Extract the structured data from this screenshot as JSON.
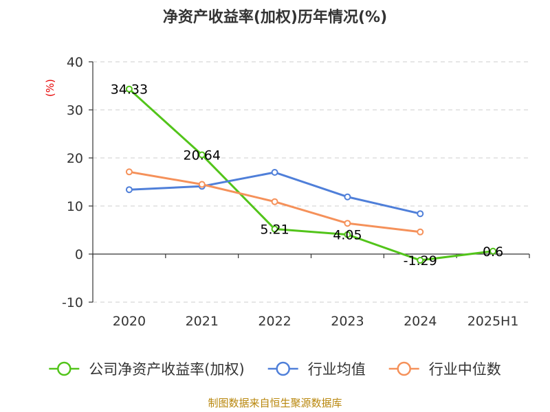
{
  "chart_data": {
    "type": "line",
    "title": "净资产收益率(加权)历年情况(%)",
    "ylabel": "(%)",
    "xlabel": "",
    "categories": [
      "2020",
      "2021",
      "2022",
      "2023",
      "2024",
      "2025H1"
    ],
    "ylim": [
      -10,
      40
    ],
    "yticks": [
      -10,
      0,
      10,
      20,
      30,
      40
    ],
    "grid": true,
    "legend_position": "bottom",
    "series": [
      {
        "name": "公司净资产收益率(加权)",
        "color": "#52c41a",
        "values": [
          34.33,
          20.64,
          5.21,
          4.05,
          -1.29,
          0.6
        ],
        "data_labels": [
          "34.33",
          "20.64",
          "5.21",
          "4.05",
          "-1.29",
          "0.6"
        ]
      },
      {
        "name": "行业均值",
        "color": "#4f7fd9",
        "values": [
          13.4,
          14.1,
          17.0,
          11.9,
          8.4,
          null
        ]
      },
      {
        "name": "行业中位数",
        "color": "#f5915a",
        "values": [
          17.1,
          14.5,
          10.9,
          6.4,
          4.6,
          null
        ]
      }
    ]
  },
  "source": "制图数据来自恒生聚源数据库"
}
